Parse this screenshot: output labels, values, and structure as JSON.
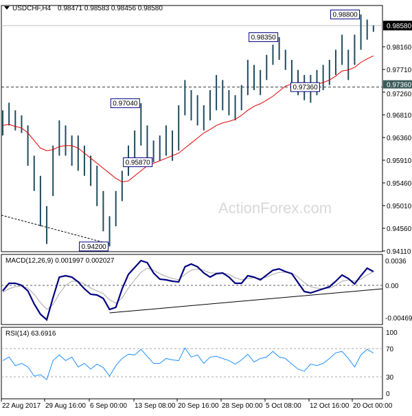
{
  "header": {
    "symbol": "USDCHF,H4",
    "ohlc": "0.98471 0.98583 0.98456 0.98580",
    "menu_icon": "triangle-down-icon"
  },
  "watermark": "ActionForex.com",
  "colors": {
    "bars": "#1f4a5e",
    "ma": "#e00000",
    "macd": "#000080",
    "signal": "#a8a8a8",
    "rsi": "#1e90ff",
    "current_price_bg": "#000000",
    "level_bg": "#3c5a5a"
  },
  "chart_data": [
    {
      "type": "bar",
      "name_label": "USDCHF,H4",
      "x_ticks": [
        "22 Aug 2017",
        "29 Aug 16:00",
        "6 Sep 00:00",
        "13 Sep 08:00",
        "20 Sep 16:00",
        "28 Sep 00:00",
        "5 Oct 08:00",
        "12 Oct 16:00",
        "20 Oct 00:00"
      ],
      "y_ticks": [
        "0.98160",
        "0.97710",
        "0.97260",
        "0.96810",
        "0.96360",
        "0.95910",
        "0.95460",
        "0.95010",
        "0.94560",
        "0.94110"
      ],
      "ylim": [
        0.9411,
        0.9894
      ],
      "current_price": "0.98580",
      "horizontal_level": "0.97360",
      "bars_high_low": [
        [
          0.969,
          0.964
        ],
        [
          0.9705,
          0.966
        ],
        [
          0.969,
          0.965
        ],
        [
          0.968,
          0.9645
        ],
        [
          0.966,
          0.958
        ],
        [
          0.96,
          0.953
        ],
        [
          0.956,
          0.946
        ],
        [
          0.95,
          0.9425
        ],
        [
          0.962,
          0.952
        ],
        [
          0.967,
          0.96
        ],
        [
          0.966,
          0.96
        ],
        [
          0.964,
          0.958
        ],
        [
          0.964,
          0.957
        ],
        [
          0.962,
          0.956
        ],
        [
          0.96,
          0.954
        ],
        [
          0.958,
          0.95
        ],
        [
          0.953,
          0.945
        ],
        [
          0.948,
          0.942
        ],
        [
          0.953,
          0.946
        ],
        [
          0.957,
          0.951
        ],
        [
          0.962,
          0.956
        ],
        [
          0.965,
          0.959
        ],
        [
          0.9704,
          0.962
        ],
        [
          0.966,
          0.959
        ],
        [
          0.963,
          0.9587
        ],
        [
          0.964,
          0.959
        ],
        [
          0.966,
          0.96
        ],
        [
          0.965,
          0.959
        ],
        [
          0.97,
          0.961
        ],
        [
          0.975,
          0.968
        ],
        [
          0.973,
          0.967
        ],
        [
          0.972,
          0.966
        ],
        [
          0.97,
          0.965
        ],
        [
          0.973,
          0.967
        ],
        [
          0.976,
          0.969
        ],
        [
          0.975,
          0.969
        ],
        [
          0.973,
          0.968
        ],
        [
          0.972,
          0.967
        ],
        [
          0.974,
          0.969
        ],
        [
          0.979,
          0.972
        ],
        [
          0.978,
          0.973
        ],
        [
          0.977,
          0.972
        ],
        [
          0.98,
          0.975
        ],
        [
          0.982,
          0.978
        ],
        [
          0.9835,
          0.979
        ],
        [
          0.981,
          0.977
        ],
        [
          0.979,
          0.974
        ],
        [
          0.977,
          0.972
        ],
        [
          0.976,
          0.971
        ],
        [
          0.976,
          0.9705
        ],
        [
          0.977,
          0.972
        ],
        [
          0.978,
          0.973
        ],
        [
          0.979,
          0.974
        ],
        [
          0.981,
          0.976
        ],
        [
          0.984,
          0.978
        ],
        [
          0.981,
          0.975
        ],
        [
          0.984,
          0.978
        ],
        [
          0.988,
          0.981
        ],
        [
          0.987,
          0.983
        ],
        [
          0.98583,
          0.98456
        ]
      ],
      "moving_average": [
        0.966,
        0.9662,
        0.9658,
        0.9655,
        0.9645,
        0.963,
        0.9615,
        0.961,
        0.9612,
        0.9618,
        0.962,
        0.962,
        0.9615,
        0.9605,
        0.9595,
        0.9585,
        0.9575,
        0.9565,
        0.9555,
        0.9548,
        0.955,
        0.956,
        0.957,
        0.958,
        0.9585,
        0.959,
        0.9595,
        0.96,
        0.9605,
        0.9615,
        0.9625,
        0.9635,
        0.9645,
        0.9652,
        0.966,
        0.9665,
        0.9668,
        0.9672,
        0.968,
        0.969,
        0.9698,
        0.9703,
        0.971,
        0.9718,
        0.9728,
        0.9738,
        0.9742,
        0.9745,
        0.9745,
        0.9743,
        0.9742,
        0.9745,
        0.975,
        0.9758,
        0.9768,
        0.977,
        0.9775,
        0.9785,
        0.9792,
        0.9798
      ],
      "annotations": [
        {
          "text": "0.98800",
          "bar": 57,
          "price": 0.988
        },
        {
          "text": "0.98350",
          "bar": 44,
          "price": 0.9835
        },
        {
          "text": "0.97040",
          "bar": 22,
          "price": 0.9704
        },
        {
          "text": "0.95870",
          "bar": 24,
          "price": 0.9587
        },
        {
          "text": "0.94200",
          "bar": 17,
          "price": 0.942
        },
        {
          "text": "0.97360",
          "bar": 50,
          "price": 0.9736
        }
      ],
      "trendline": [
        [
          0,
          0.9482
        ],
        [
          17,
          0.9425
        ]
      ]
    },
    {
      "type": "line",
      "title": "MACD(12,26,9) 0.001997 0.002027",
      "y_ticks": [
        "0.0036",
        "0.00",
        "-0.004696"
      ],
      "ylim": [
        -0.0054,
        0.004
      ],
      "macd": [
        -0.0008,
        0.0003,
        0.0003,
        0.0,
        -0.0008,
        -0.0027,
        -0.0042,
        -0.005,
        -0.0018,
        0.0012,
        0.0014,
        0.0012,
        0.0005,
        -0.0005,
        -0.0013,
        -0.0014,
        -0.0019,
        -0.0035,
        -0.0032,
        -0.0005,
        0.0016,
        0.0026,
        0.0036,
        0.0033,
        0.0018,
        0.0009,
        0.0008,
        0.0006,
        0.0005,
        0.0027,
        0.0031,
        0.0027,
        0.0018,
        0.0012,
        0.0017,
        0.0018,
        0.0012,
        0.0003,
        0.0003,
        0.0014,
        0.0012,
        0.0008,
        0.0015,
        0.0022,
        0.0024,
        0.002,
        0.0017,
        0.0004,
        -0.0009,
        -0.0011,
        -0.0008,
        -0.0005,
        -0.0002,
        0.0006,
        0.0015,
        0.001,
        0.0002,
        0.0014,
        0.0025,
        0.002
      ],
      "signal": [
        -0.001,
        -0.0005,
        -0.0002,
        -0.0001,
        -0.0004,
        -0.0013,
        -0.0025,
        -0.0035,
        -0.0028,
        -0.0012,
        0.0,
        0.0006,
        0.0006,
        0.0002,
        -0.0004,
        -0.0008,
        -0.0012,
        -0.0021,
        -0.0026,
        -0.0018,
        -0.0004,
        0.0008,
        0.0019,
        0.0025,
        0.0022,
        0.0017,
        0.0013,
        0.001,
        0.0008,
        0.0016,
        0.0022,
        0.0024,
        0.0022,
        0.0018,
        0.0018,
        0.0018,
        0.0016,
        0.0011,
        0.0008,
        0.001,
        0.0011,
        0.001,
        0.0012,
        0.0016,
        0.0019,
        0.0019,
        0.0018,
        0.0012,
        0.0004,
        -0.0002,
        -0.0004,
        -0.0005,
        -0.0004,
        0.0,
        0.0006,
        0.0008,
        0.0006,
        0.0009,
        0.0015,
        0.002
      ],
      "trendline": [
        [
          17,
          -0.004
        ],
        [
          59,
          -0.0006
        ]
      ]
    },
    {
      "type": "line",
      "title": "RSI(14) 63.6916",
      "y_ticks": [
        "100",
        "70",
        "30",
        "0"
      ],
      "ylim": [
        0,
        100
      ],
      "levels": [
        70,
        30
      ],
      "rsi": [
        53,
        58,
        46,
        49,
        44,
        31,
        33,
        26,
        53,
        61,
        53,
        58,
        44,
        49,
        41,
        48,
        43,
        31,
        46,
        56,
        62,
        61,
        69,
        59,
        49,
        49,
        56,
        54,
        53,
        71,
        58,
        61,
        49,
        58,
        59,
        56,
        53,
        48,
        54,
        62,
        51,
        56,
        58,
        66,
        58,
        56,
        48,
        41,
        38,
        48,
        46,
        49,
        56,
        64,
        66,
        56,
        44,
        61,
        69,
        63.69
      ]
    }
  ]
}
